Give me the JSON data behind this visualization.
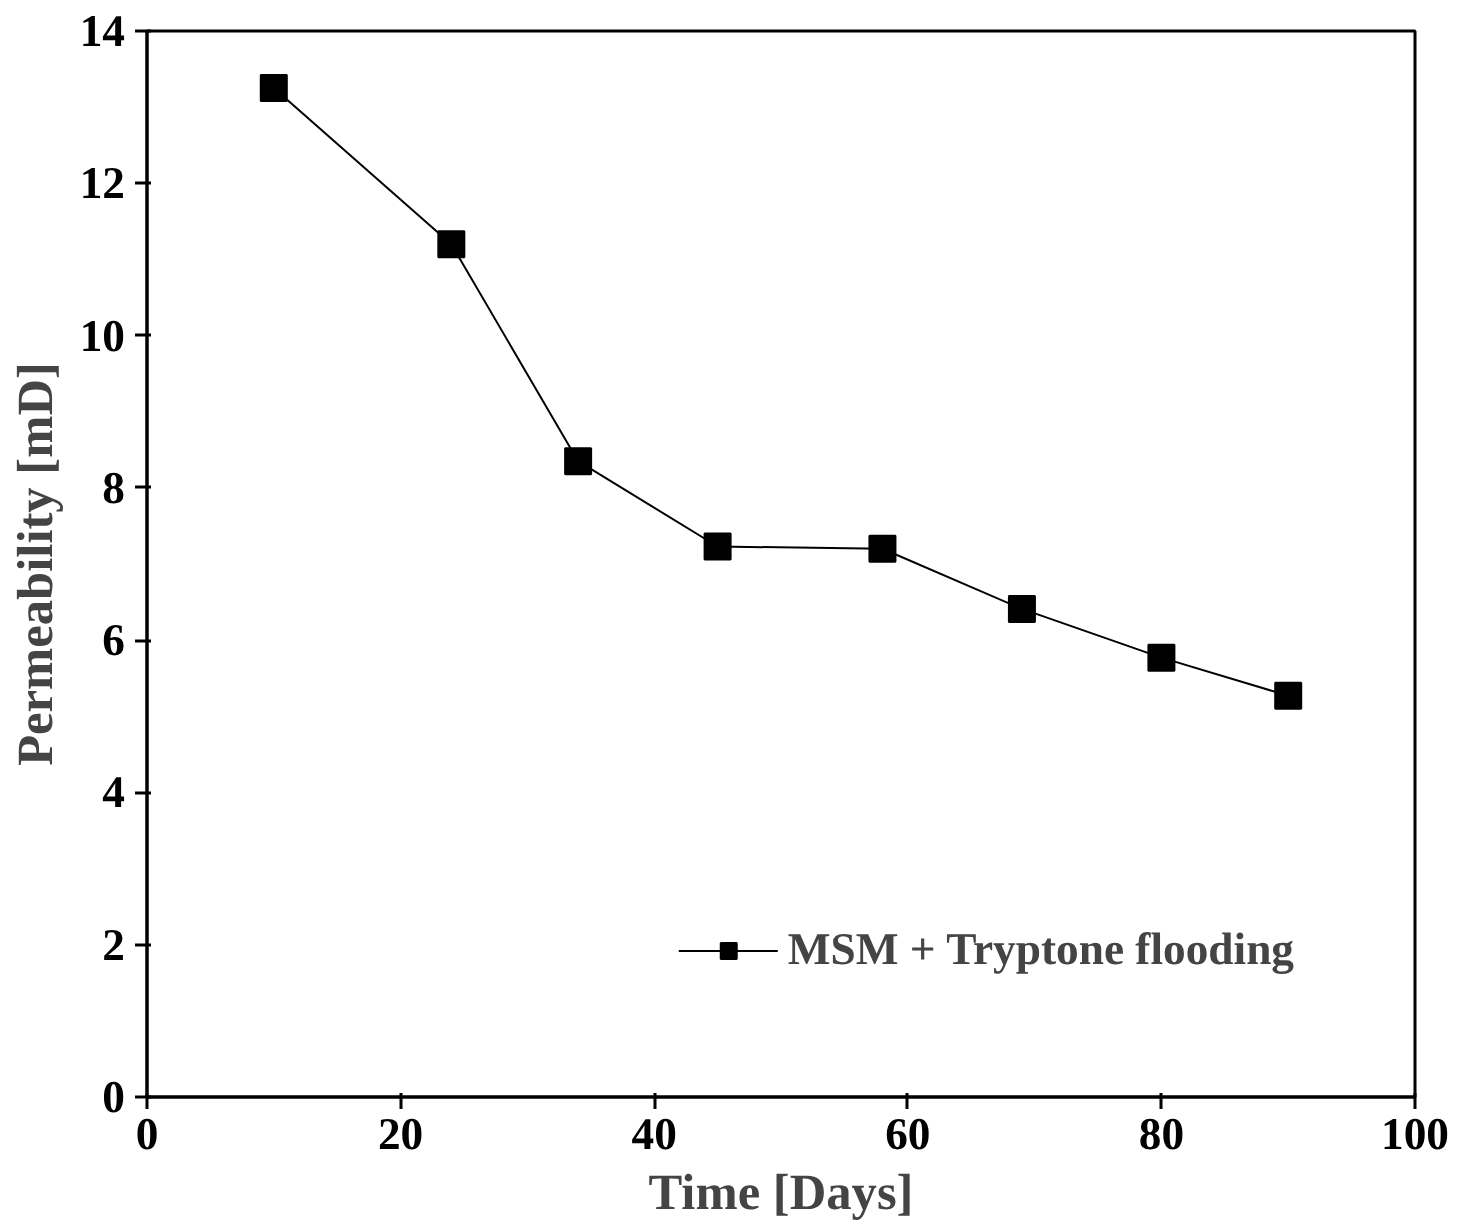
{
  "chart_data": {
    "type": "line",
    "xlabel": "Time [Days]",
    "ylabel": "Permeability [mD]",
    "x": [
      10,
      24,
      34,
      45,
      58,
      69,
      80,
      90
    ],
    "series": [
      {
        "name": "MSM + Tryptone flooding",
        "color": "#000000",
        "values": [
          13.25,
          11.2,
          8.35,
          7.23,
          7.2,
          6.41,
          5.77,
          5.27
        ]
      }
    ],
    "xlim": [
      0,
      100
    ],
    "xticks": [
      0,
      20,
      40,
      60,
      80,
      100
    ],
    "ylim": [
      0,
      14
    ],
    "yticks": [
      0,
      2,
      4,
      6,
      8,
      10,
      12,
      14
    ],
    "marker": "square",
    "line_style": "solid",
    "grid": false,
    "legend": "bottom right"
  }
}
